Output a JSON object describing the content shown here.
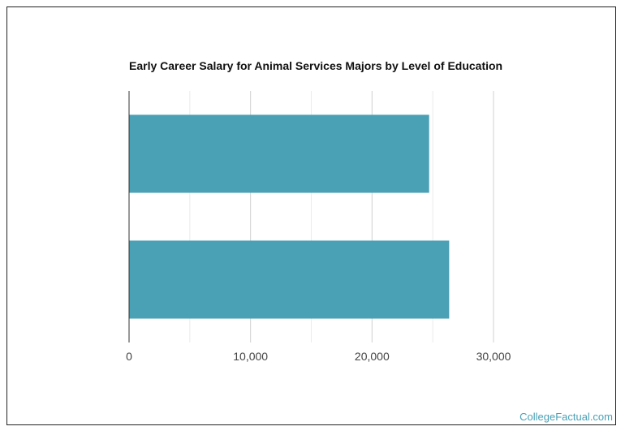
{
  "chart_data": {
    "type": "bar",
    "orientation": "horizontal",
    "title": "Early Career Salary for Animal Services Majors by Level of Education",
    "categories": [
      "",
      ""
    ],
    "values": [
      24700,
      26350
    ],
    "xlim": [
      0,
      30000
    ],
    "x_ticks": [
      0,
      10000,
      20000,
      30000
    ],
    "x_tick_labels": [
      "0",
      "10,000",
      "20,000",
      "30,000"
    ],
    "grid": true,
    "bar_color": "#4aa0b5"
  },
  "watermark": "CollegeFactual.com"
}
